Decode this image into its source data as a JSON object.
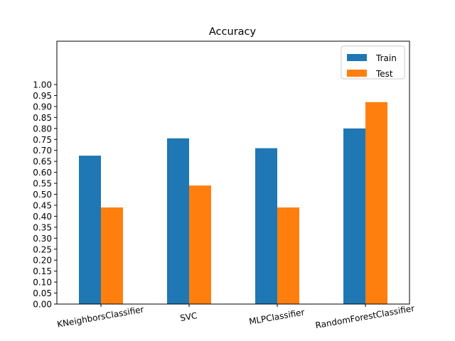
{
  "chart_data": {
    "type": "bar",
    "title": "Accuracy",
    "xlabel": "",
    "ylabel": "",
    "categories": [
      "KNeighborsClassifier",
      "SVC",
      "MLPClassifier",
      "RandomForestClassifier"
    ],
    "series": [
      {
        "name": "Train",
        "color": "#1f77b4",
        "values": [
          0.676,
          0.755,
          0.71,
          0.8
        ]
      },
      {
        "name": "Test",
        "color": "#ff7f0e",
        "values": [
          0.44,
          0.54,
          0.44,
          0.92
        ]
      }
    ],
    "ylim": [
      0,
      1.0
    ],
    "yticks": [
      "0.00",
      "0.05",
      "0.10",
      "0.15",
      "0.20",
      "0.25",
      "0.30",
      "0.35",
      "0.40",
      "0.45",
      "0.50",
      "0.55",
      "0.60",
      "0.65",
      "0.70",
      "0.75",
      "0.80",
      "0.85",
      "0.90",
      "0.95",
      "1.00"
    ],
    "grid": false,
    "legend_position": "top-right",
    "x_tick_rotation": "slight counter-clockwise"
  }
}
